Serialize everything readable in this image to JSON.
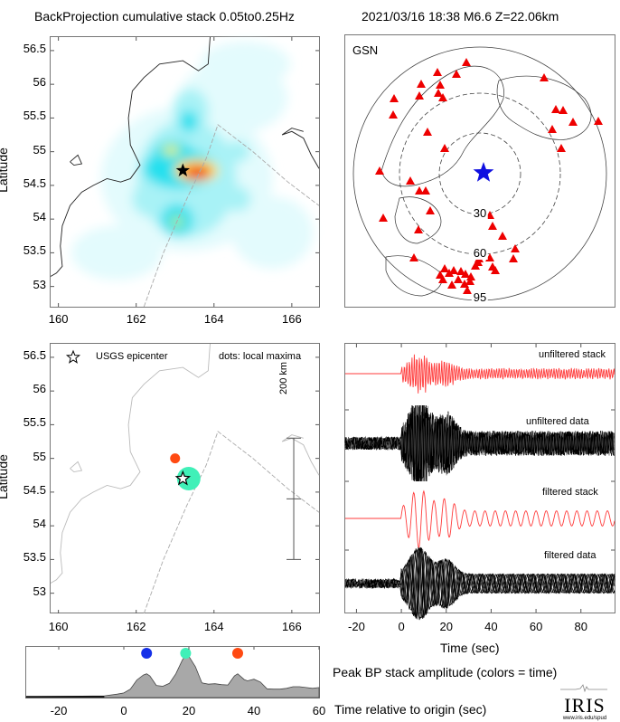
{
  "header": {
    "title": "BackProjection cumulative stack 0.05to0.25Hz",
    "event": "2021/03/16 18:38  M6.6  Z=22.06km"
  },
  "colors": {
    "stack": "#ff3b3b",
    "data": "#000000",
    "station": "#ee0000",
    "epicenter_global": "#1010e0",
    "dot_early": "#1530e8",
    "dot_mid": "#40f0b8",
    "dot_late": "#ff4a12",
    "amplitude_fill": "#a8a8a8"
  },
  "chart_data": [
    {
      "id": "bp-heatmap",
      "type": "heatmap",
      "title": "BackProjection cumulative stack",
      "xlabel": "",
      "ylabel": "Latitude",
      "xlim": [
        159.8,
        166.7
      ],
      "ylim": [
        52.7,
        56.7
      ],
      "xticks": [
        "160",
        "162",
        "164",
        "166"
      ],
      "yticks": [
        "53",
        "53.5",
        "54",
        "54.5",
        "55",
        "55.5",
        "56",
        "56.5"
      ],
      "epicenter": {
        "lon": 163.2,
        "lat": 54.72
      },
      "peaks": [
        {
          "lon": 163.55,
          "lat": 54.7,
          "level": 1.0
        },
        {
          "lon": 162.9,
          "lat": 55.02,
          "level": 0.55
        },
        {
          "lon": 163.05,
          "lat": 53.96,
          "level": 0.45
        },
        {
          "lon": 162.35,
          "lat": 54.35,
          "level": 0.3
        },
        {
          "lon": 163.4,
          "lat": 55.55,
          "level": 0.3
        }
      ]
    },
    {
      "id": "station-map",
      "type": "scatter",
      "title": "GSN",
      "ring_labels": [
        "30",
        "60",
        "95"
      ],
      "ring_degrees": [
        30,
        60,
        95
      ],
      "epicenter_symbol": "blue star"
    },
    {
      "id": "local-maxima-map",
      "type": "scatter",
      "ylabel": "Latitude",
      "xlim": [
        159.8,
        166.7
      ],
      "ylim": [
        52.7,
        56.7
      ],
      "xticks": [
        "160",
        "162",
        "164",
        "166"
      ],
      "yticks": [
        "53",
        "53.5",
        "54",
        "54.5",
        "55",
        "55.5",
        "56",
        "56.5"
      ],
      "legend": {
        "epicenter": "USGS epicenter",
        "dots": "dots: local maxima"
      },
      "scale_bar": {
        "label": "200 km",
        "lon": 166.05,
        "lat_top": 55.3,
        "lat_mid": 54.4,
        "lat_bottom": 53.5
      },
      "epicenter": {
        "lon": 163.2,
        "lat": 54.7
      },
      "maxima": [
        {
          "lon": 163.35,
          "lat": 54.7,
          "time": 19,
          "size": "large"
        },
        {
          "lon": 163.0,
          "lat": 55.0,
          "time": 35,
          "size": "small"
        }
      ]
    },
    {
      "id": "waveforms",
      "type": "line",
      "xlabel": "Time (sec)",
      "xlim": [
        -25,
        95
      ],
      "xticks": [
        "-20",
        "0",
        "20",
        "40",
        "60",
        "80"
      ],
      "traces": [
        {
          "label": "unfiltered stack",
          "kind": "stack",
          "filtered": false
        },
        {
          "label": "unfiltered data",
          "kind": "data",
          "filtered": false
        },
        {
          "label": "filtered stack",
          "kind": "stack",
          "filtered": true
        },
        {
          "label": "filtered data",
          "kind": "data",
          "filtered": true
        }
      ]
    },
    {
      "id": "peak-amplitude",
      "type": "area",
      "title": "Peak BP stack amplitude (colors = time)",
      "xlabel": "Time relative to origin (sec)",
      "xlim": [
        -30,
        60
      ],
      "ylim": [
        0,
        1
      ],
      "xticks": [
        "-20",
        "0",
        "20",
        "40",
        "60"
      ],
      "x": [
        -30,
        -6,
        -2,
        0,
        2,
        4,
        6,
        7,
        8,
        10,
        12,
        14,
        16,
        18,
        19,
        20,
        22,
        24,
        26,
        28,
        30,
        32,
        34,
        35,
        37,
        38,
        40,
        42,
        44,
        46,
        48,
        50,
        52,
        54,
        56,
        58,
        60
      ],
      "y": [
        0.0,
        0.02,
        0.06,
        0.09,
        0.18,
        0.4,
        0.52,
        0.55,
        0.5,
        0.27,
        0.25,
        0.32,
        0.55,
        0.88,
        1.0,
        0.97,
        0.72,
        0.33,
        0.3,
        0.31,
        0.29,
        0.28,
        0.5,
        0.55,
        0.41,
        0.38,
        0.42,
        0.35,
        0.19,
        0.18,
        0.18,
        0.2,
        0.24,
        0.24,
        0.22,
        0.2,
        0.22
      ],
      "markers": [
        {
          "time": 7,
          "color": "dot_early"
        },
        {
          "time": 19,
          "color": "dot_mid"
        },
        {
          "time": 35,
          "color": "dot_late"
        }
      ]
    }
  ],
  "footer": {
    "logo_text": "IRIS",
    "logo_url_text": "www.iris.edu/spud"
  }
}
